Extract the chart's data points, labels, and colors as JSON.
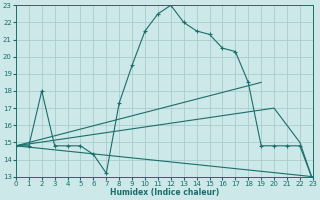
{
  "xlabel": "Humidex (Indice chaleur)",
  "bg_color": "#cce8e8",
  "grid_color": "#aacccc",
  "line_color": "#1a6e6a",
  "xlim": [
    0,
    23
  ],
  "ylim": [
    13,
    23
  ],
  "xticks": [
    0,
    1,
    2,
    3,
    4,
    5,
    6,
    7,
    8,
    9,
    10,
    11,
    12,
    13,
    14,
    15,
    16,
    17,
    18,
    19,
    20,
    21,
    22,
    23
  ],
  "yticks": [
    13,
    14,
    15,
    16,
    17,
    18,
    19,
    20,
    21,
    22,
    23
  ],
  "lines": [
    {
      "x": [
        0,
        1,
        2,
        3,
        4,
        5,
        6,
        7,
        8,
        9,
        10,
        11,
        12,
        13,
        14,
        15,
        16,
        17,
        18,
        19,
        20,
        21,
        22,
        23
      ],
      "y": [
        14.8,
        14.8,
        18.0,
        14.8,
        14.8,
        14.8,
        14.3,
        13.2,
        17.3,
        19.5,
        21.5,
        22.5,
        23.0,
        22.0,
        21.5,
        21.3,
        20.5,
        20.3,
        18.5,
        14.8,
        14.8,
        14.8,
        14.8,
        12.8
      ],
      "markers": true
    },
    {
      "x": [
        0,
        19
      ],
      "y": [
        14.8,
        18.5
      ],
      "markers": false
    },
    {
      "x": [
        0,
        20,
        21,
        22,
        23
      ],
      "y": [
        14.8,
        17.0,
        16.0,
        15.0,
        12.8
      ],
      "markers": false
    },
    {
      "x": [
        0,
        23
      ],
      "y": [
        14.8,
        13.0
      ],
      "markers": false
    }
  ]
}
